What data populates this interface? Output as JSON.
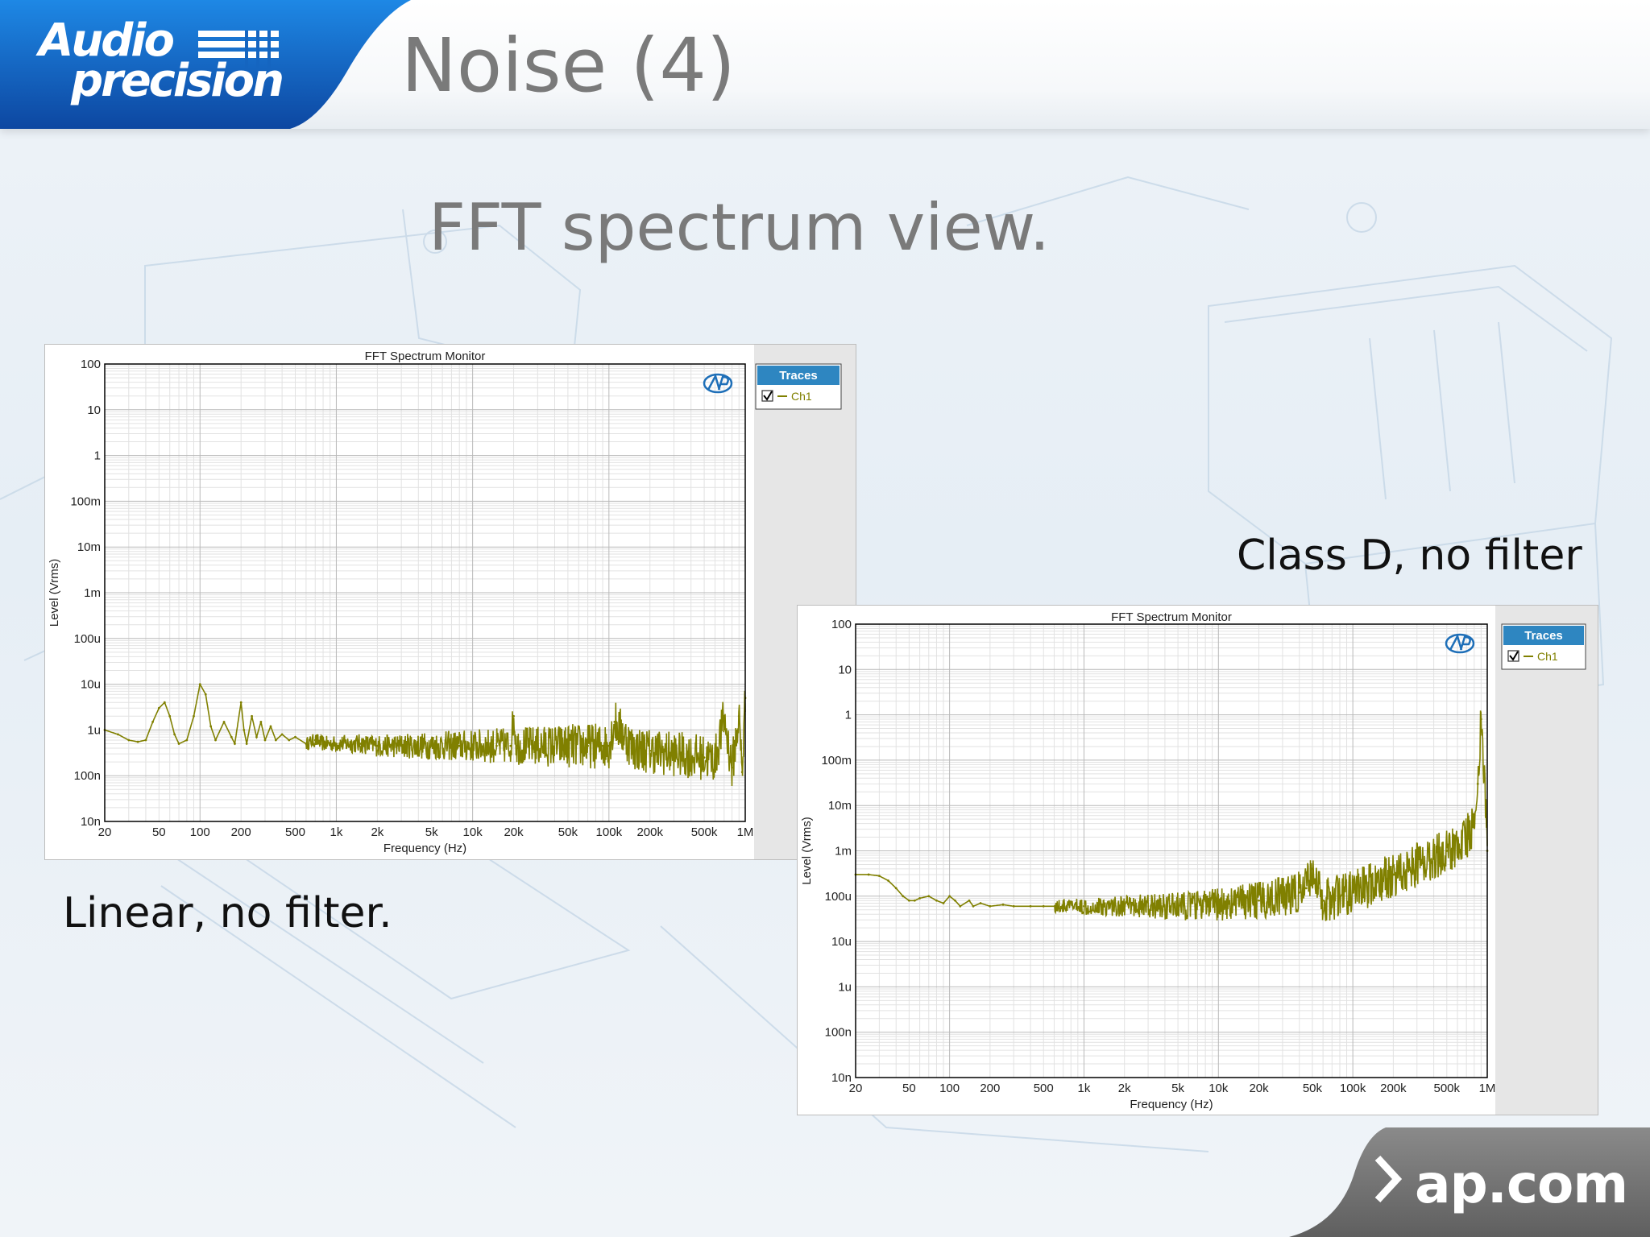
{
  "header": {
    "logo_line1": "Audio",
    "logo_line2": "precision",
    "title": "Noise (4)"
  },
  "subtitle": "FFT spectrum view.",
  "captions": {
    "linear": "Linear, no filter.",
    "class_d": "Class D, no filter"
  },
  "footer": {
    "text": "ap.com",
    "icon": "chevron-right-icon"
  },
  "colors": {
    "brand_blue": "#1565c0",
    "trace": "#808000",
    "legend_header": "#2e86c1",
    "title_gray": "#7a7a7a"
  },
  "chart_data": [
    {
      "type": "line",
      "title": "FFT Spectrum Monitor",
      "xlabel": "Frequency (Hz)",
      "ylabel": "Level (Vrms)",
      "xscale": "log",
      "yscale": "log",
      "xlim": [
        20,
        1000000
      ],
      "ylim": [
        1e-08,
        100
      ],
      "xticks": [
        20,
        50,
        100,
        200,
        500,
        1000,
        2000,
        5000,
        10000,
        20000,
        50000,
        100000,
        200000,
        500000,
        1000000
      ],
      "xtick_labels": [
        "20",
        "50",
        "100",
        "200",
        "500",
        "1k",
        "2k",
        "5k",
        "10k",
        "20k",
        "50k",
        "100k",
        "200k",
        "500k",
        "1M"
      ],
      "yticks": [
        1e-08,
        1e-07,
        1e-06,
        1e-05,
        0.0001,
        0.001,
        0.01,
        0.1,
        1,
        10,
        100
      ],
      "ytick_labels": [
        "10n",
        "100n",
        "1u",
        "10u",
        "100u",
        "1m",
        "10m",
        "100m",
        "1",
        "10",
        "100"
      ],
      "grid": true,
      "legend": {
        "title": "Traces",
        "placement": "right",
        "entries": [
          "Ch1"
        ]
      },
      "series": [
        {
          "name": "Ch1",
          "x": [
            20,
            25,
            30,
            35,
            40,
            45,
            50,
            55,
            60,
            65,
            70,
            80,
            90,
            100,
            110,
            120,
            130,
            150,
            170,
            180,
            200,
            210,
            220,
            240,
            260,
            280,
            300,
            330,
            360,
            400,
            450,
            500,
            600,
            700,
            800,
            1000,
            1500,
            2000,
            3000,
            5000,
            8000,
            10000,
            15000,
            19000,
            20000,
            21000,
            30000,
            50000,
            70000,
            90000,
            100000,
            110000,
            150000,
            200000,
            300000,
            500000,
            600000,
            700000,
            800000,
            900000,
            950000,
            1000000
          ],
          "y": [
            1e-06,
            8e-07,
            6e-07,
            5.5e-07,
            6e-07,
            1.5e-06,
            3e-06,
            4e-06,
            2e-06,
            8e-07,
            5e-07,
            6e-07,
            2e-06,
            1e-05,
            6e-06,
            1.2e-06,
            6e-07,
            1.5e-06,
            7e-07,
            5e-07,
            4e-06,
            1e-06,
            5e-07,
            2e-06,
            7e-07,
            1.5e-06,
            6e-07,
            1.2e-06,
            6e-07,
            8e-07,
            6e-07,
            7e-07,
            5e-07,
            6e-07,
            5e-07,
            5e-07,
            5e-07,
            4.5e-07,
            4.5e-07,
            4.5e-07,
            4.5e-07,
            4.5e-07,
            4.5e-07,
            4.5e-07,
            2e-06,
            4.5e-07,
            4.5e-07,
            4.5e-07,
            4.5e-07,
            4.5e-07,
            4.5e-07,
            1.5e-06,
            4e-07,
            3.5e-07,
            3e-07,
            2.5e-07,
            2.2e-07,
            1.8e-06,
            1.5e-07,
            2e-06,
            1.2e-07,
            5e-06
          ]
        }
      ]
    },
    {
      "type": "line",
      "title": "FFT Spectrum Monitor",
      "xlabel": "Frequency (Hz)",
      "ylabel": "Level (Vrms)",
      "xscale": "log",
      "yscale": "log",
      "xlim": [
        20,
        1000000
      ],
      "ylim": [
        1e-08,
        100
      ],
      "xticks": [
        20,
        50,
        100,
        200,
        500,
        1000,
        2000,
        5000,
        10000,
        20000,
        50000,
        100000,
        200000,
        500000,
        1000000
      ],
      "xtick_labels": [
        "20",
        "50",
        "100",
        "200",
        "500",
        "1k",
        "2k",
        "5k",
        "10k",
        "20k",
        "50k",
        "100k",
        "200k",
        "500k",
        "1M"
      ],
      "yticks": [
        1e-08,
        1e-07,
        1e-06,
        1e-05,
        0.0001,
        0.001,
        0.01,
        0.1,
        1,
        10,
        100
      ],
      "ytick_labels": [
        "10n",
        "100n",
        "1u",
        "10u",
        "100u",
        "1m",
        "10m",
        "100m",
        "1",
        "10",
        "100"
      ],
      "grid": true,
      "legend": {
        "title": "Traces",
        "placement": "right",
        "entries": [
          "Ch1"
        ]
      },
      "series": [
        {
          "name": "Ch1",
          "x": [
            20,
            25,
            30,
            35,
            40,
            45,
            50,
            55,
            60,
            70,
            80,
            90,
            100,
            110,
            120,
            140,
            150,
            170,
            200,
            250,
            300,
            400,
            500,
            700,
            1000,
            2000,
            5000,
            10000,
            20000,
            30000,
            40000,
            45000,
            50000,
            55000,
            60000,
            80000,
            100000,
            150000,
            200000,
            300000,
            500000,
            700000,
            800000,
            850000,
            900000,
            950000,
            1000000
          ],
          "y": [
            0.0003,
            0.0003,
            0.00028,
            0.00022,
            0.00015,
            0.0001,
            8e-05,
            8e-05,
            9e-05,
            0.0001,
            8e-05,
            7e-05,
            0.0001,
            8e-05,
            6e-05,
            8e-05,
            6e-05,
            7e-05,
            6e-05,
            6.5e-05,
            6e-05,
            6e-05,
            6e-05,
            6e-05,
            6e-05,
            6e-05,
            6e-05,
            6.5e-05,
            8e-05,
            0.0001,
            0.00012,
            0.00015,
            0.0004,
            0.00015,
            8e-05,
            0.0001,
            0.00012,
            0.0002,
            0.0003,
            0.0005,
            0.001,
            0.002,
            0.004,
            0.03,
            0.8,
            0.05,
            0.001
          ]
        }
      ]
    }
  ]
}
